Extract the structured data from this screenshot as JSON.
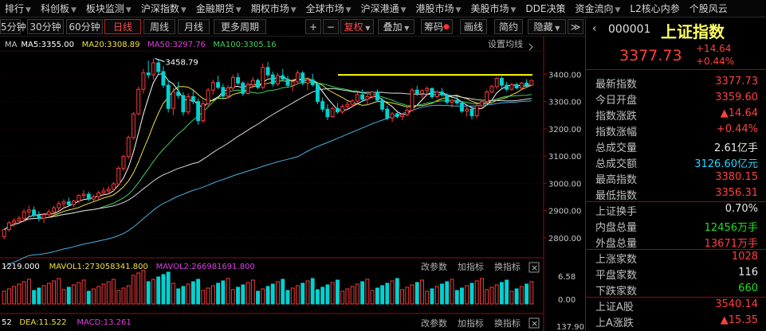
{
  "top_menu": [
    {
      "label": "排行",
      "caret": true
    },
    {
      "label": "科创板",
      "caret": true
    },
    {
      "label": "板块监测",
      "caret": true
    },
    {
      "label": "沪深指数",
      "caret": true
    },
    {
      "label": "金融期货",
      "caret": true
    },
    {
      "label": "期权市场",
      "caret": true
    },
    {
      "label": "全球市场",
      "caret": true
    },
    {
      "label": "沪深港通",
      "caret": true
    },
    {
      "label": "港股市场",
      "caret": true
    },
    {
      "label": "美股市场",
      "caret": true
    },
    {
      "label": "DDE决策",
      "caret": false
    },
    {
      "label": "资金流向",
      "caret": true
    },
    {
      "label": "L2核心内参",
      "caret": false
    },
    {
      "label": "个股风云",
      "caret": false
    }
  ],
  "toolbar": {
    "period_buttons": [
      "5分钟",
      "30分钟",
      "60分钟",
      "日线",
      "周线",
      "月线",
      "更多周期"
    ],
    "active_period": "日线",
    "plus": "+",
    "minus": "−",
    "fuquan": "复权",
    "overlay": "叠加",
    "chouma": "筹码",
    "draw_line": "画线",
    "simple": "简约",
    "hide": "隐藏",
    "more": "≫"
  },
  "chart": {
    "ma_legend": [
      {
        "text": "MA",
        "color": "#c8c8c8"
      },
      {
        "text": "MA5:3355.00",
        "color": "#ffffff"
      },
      {
        "text": "MA20:3308.89",
        "color": "#f0e040"
      },
      {
        "text": "MA50:3297.76",
        "color": "#e040e0"
      },
      {
        "text": "MA100:3305.16",
        "color": "#40d060"
      }
    ],
    "settings_label": "设置均线",
    "high_label": "3458.79",
    "y_ticks": [
      "3400.00",
      "3300.00",
      "3200.00",
      "3100.00",
      "3000.00",
      "2900.00",
      "2800.00"
    ],
    "vol_legend": [
      {
        "text": "1219.000",
        "color": "#ffffff"
      },
      {
        "text": "MAVOL1:273058341.800",
        "color": "#f0e040"
      },
      {
        "text": "MAVOL2:266981691.800",
        "color": "#e040e0"
      }
    ],
    "vol_ticks": [
      "6.58",
      "0.00"
    ],
    "macd_legend": [
      {
        "text": "52",
        "color": "#ffffff"
      },
      {
        "text": "DEA:11.522",
        "color": "#f0e040"
      },
      {
        "text": "MACD:13.261",
        "color": "#e040e0"
      }
    ],
    "macd_tick": "137.90",
    "panel_links": [
      "改参数",
      "加指标",
      "换指标"
    ],
    "close_glyph": "×",
    "colors": {
      "up": "#ff3a3a",
      "down": "#00d2d2",
      "resistance": "#ffff00"
    }
  },
  "chart_data": {
    "type": "candlestick",
    "y_range": [
      2750,
      3480
    ],
    "resistance_level": 3398,
    "ohlc": [
      [
        2805,
        2835,
        2795,
        2830
      ],
      [
        2830,
        2862,
        2822,
        2855
      ],
      [
        2855,
        2872,
        2840,
        2862
      ],
      [
        2862,
        2880,
        2850,
        2872
      ],
      [
        2872,
        2905,
        2858,
        2895
      ],
      [
        2895,
        2918,
        2880,
        2902
      ],
      [
        2902,
        2915,
        2875,
        2882
      ],
      [
        2882,
        2898,
        2860,
        2872
      ],
      [
        2872,
        2890,
        2855,
        2885
      ],
      [
        2885,
        2905,
        2872,
        2895
      ],
      [
        2895,
        2918,
        2888,
        2910
      ],
      [
        2910,
        2935,
        2900,
        2925
      ],
      [
        2925,
        2942,
        2910,
        2932
      ],
      [
        2932,
        2948,
        2918,
        2922
      ],
      [
        2922,
        2940,
        2912,
        2935
      ],
      [
        2935,
        2960,
        2928,
        2955
      ],
      [
        2955,
        2975,
        2945,
        2960
      ],
      [
        2960,
        2970,
        2935,
        2942
      ],
      [
        2942,
        2958,
        2932,
        2950
      ],
      [
        2950,
        2972,
        2940,
        2965
      ],
      [
        2965,
        2985,
        2955,
        2972
      ],
      [
        2972,
        2990,
        2960,
        2978
      ],
      [
        2978,
        3005,
        2970,
        2998
      ],
      [
        2998,
        3062,
        2990,
        3055
      ],
      [
        3055,
        3105,
        3045,
        3098
      ],
      [
        3098,
        3175,
        3090,
        3168
      ],
      [
        3168,
        3262,
        3160,
        3255
      ],
      [
        3255,
        3355,
        3250,
        3345
      ],
      [
        3345,
        3420,
        3330,
        3405
      ],
      [
        3405,
        3450,
        3385,
        3398
      ],
      [
        3398,
        3458,
        3380,
        3442
      ],
      [
        3442,
        3455,
        3400,
        3410
      ],
      [
        3410,
        3430,
        3350,
        3360
      ],
      [
        3360,
        3380,
        3260,
        3275
      ],
      [
        3275,
        3350,
        3250,
        3335
      ],
      [
        3335,
        3372,
        3310,
        3322
      ],
      [
        3322,
        3335,
        3248,
        3262
      ],
      [
        3262,
        3330,
        3252,
        3318
      ],
      [
        3318,
        3345,
        3290,
        3300
      ],
      [
        3300,
        3312,
        3215,
        3230
      ],
      [
        3230,
        3305,
        3222,
        3292
      ],
      [
        3292,
        3350,
        3282,
        3342
      ],
      [
        3342,
        3380,
        3325,
        3370
      ],
      [
        3370,
        3395,
        3345,
        3352
      ],
      [
        3352,
        3365,
        3308,
        3320
      ],
      [
        3320,
        3360,
        3312,
        3350
      ],
      [
        3350,
        3398,
        3338,
        3388
      ],
      [
        3388,
        3405,
        3360,
        3368
      ],
      [
        3368,
        3375,
        3320,
        3330
      ],
      [
        3330,
        3372,
        3325,
        3362
      ],
      [
        3362,
        3390,
        3348,
        3378
      ],
      [
        3378,
        3385,
        3345,
        3352
      ],
      [
        3352,
        3440,
        3345,
        3425
      ],
      [
        3425,
        3445,
        3390,
        3398
      ],
      [
        3398,
        3410,
        3355,
        3365
      ],
      [
        3365,
        3405,
        3358,
        3395
      ],
      [
        3395,
        3420,
        3375,
        3382
      ],
      [
        3382,
        3395,
        3350,
        3360
      ],
      [
        3360,
        3380,
        3338,
        3372
      ],
      [
        3372,
        3415,
        3365,
        3405
      ],
      [
        3405,
        3412,
        3360,
        3368
      ],
      [
        3368,
        3390,
        3342,
        3380
      ],
      [
        3380,
        3402,
        3355,
        3362
      ],
      [
        3362,
        3368,
        3290,
        3300
      ],
      [
        3300,
        3315,
        3262,
        3272
      ],
      [
        3272,
        3290,
        3232,
        3245
      ],
      [
        3245,
        3282,
        3240,
        3275
      ],
      [
        3275,
        3295,
        3255,
        3262
      ],
      [
        3262,
        3290,
        3255,
        3282
      ],
      [
        3282,
        3300,
        3268,
        3290
      ],
      [
        3290,
        3310,
        3278,
        3302
      ],
      [
        3302,
        3332,
        3295,
        3325
      ],
      [
        3325,
        3345,
        3300,
        3308
      ],
      [
        3308,
        3325,
        3290,
        3318
      ],
      [
        3318,
        3340,
        3310,
        3335
      ],
      [
        3335,
        3345,
        3300,
        3305
      ],
      [
        3305,
        3312,
        3262,
        3272
      ],
      [
        3272,
        3285,
        3232,
        3240
      ],
      [
        3240,
        3262,
        3225,
        3255
      ],
      [
        3255,
        3268,
        3238,
        3245
      ],
      [
        3245,
        3258,
        3232,
        3252
      ],
      [
        3252,
        3275,
        3245,
        3268
      ],
      [
        3268,
        3350,
        3262,
        3342
      ],
      [
        3342,
        3358,
        3320,
        3330
      ],
      [
        3330,
        3345,
        3312,
        3340
      ],
      [
        3340,
        3356,
        3325,
        3348
      ],
      [
        3348,
        3352,
        3310,
        3318
      ],
      [
        3318,
        3340,
        3312,
        3335
      ],
      [
        3335,
        3350,
        3318,
        3325
      ],
      [
        3325,
        3332,
        3290,
        3298
      ],
      [
        3298,
        3310,
        3278,
        3305
      ],
      [
        3305,
        3320,
        3288,
        3295
      ],
      [
        3295,
        3302,
        3258,
        3265
      ],
      [
        3265,
        3280,
        3245,
        3272
      ],
      [
        3272,
        3282,
        3235,
        3248
      ],
      [
        3248,
        3290,
        3240,
        3285
      ],
      [
        3285,
        3305,
        3275,
        3300
      ],
      [
        3300,
        3342,
        3292,
        3335
      ],
      [
        3335,
        3362,
        3330,
        3355
      ],
      [
        3355,
        3390,
        3345,
        3385
      ],
      [
        3385,
        3392,
        3350,
        3360
      ],
      [
        3360,
        3372,
        3338,
        3345
      ],
      [
        3345,
        3368,
        3340,
        3362
      ],
      [
        3362,
        3370,
        3345,
        3350
      ],
      [
        3350,
        3372,
        3345,
        3368
      ],
      [
        3368,
        3382,
        3355,
        3360
      ],
      [
        3360,
        3380,
        3356,
        3378
      ]
    ]
  },
  "quote": {
    "code": "000001",
    "name": "上证指数",
    "price": "3377.73",
    "change": "+14.64",
    "change_pct": "+0.44%",
    "rows": [
      {
        "label": "最新指数",
        "value": "3377.73",
        "cls": "red-t"
      },
      {
        "label": "今日开盘",
        "value": "3359.60",
        "cls": "red-t"
      },
      {
        "label": "指数涨跌",
        "value": "▲14.64",
        "cls": "red-t"
      },
      {
        "label": "指数涨幅",
        "value": "+0.44%",
        "cls": "red-t"
      },
      {
        "label": "总成交量",
        "value": "2.61亿手",
        "cls": "white-t"
      },
      {
        "label": "总成交额",
        "value": "3126.60亿元",
        "cls": "cyan-t"
      },
      {
        "label": "最高指数",
        "value": "3380.15",
        "cls": "red-t"
      },
      {
        "label": "最低指数",
        "value": "3356.31",
        "cls": "red-t"
      },
      {
        "label": "上证换手",
        "value": "0.70%",
        "cls": "white-t"
      },
      {
        "label": "内盘总量",
        "value": "12456万手",
        "cls": "green-t"
      },
      {
        "label": "外盘总量",
        "value": "13671万手",
        "cls": "red-t"
      },
      {
        "label": "上涨家数",
        "value": "1028",
        "cls": "red-t"
      },
      {
        "label": "平盘家数",
        "value": "116",
        "cls": "white-t"
      },
      {
        "label": "下跌家数",
        "value": "660",
        "cls": "green-t"
      },
      {
        "label": "上证A股",
        "value": "3540.14",
        "cls": "red-t"
      },
      {
        "label": "上A涨跌",
        "value": "▲15.35",
        "cls": "red-t"
      }
    ]
  }
}
